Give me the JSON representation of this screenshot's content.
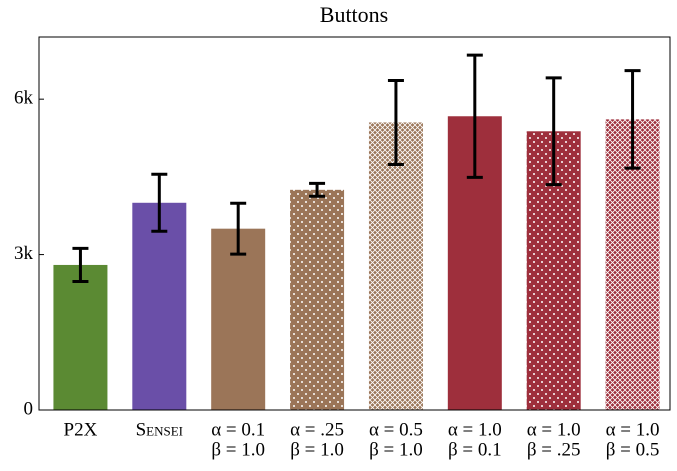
{
  "chart_data": {
    "type": "bar",
    "title": "Buttons",
    "categories": [
      [
        "P2X"
      ],
      [
        "Sensei"
      ],
      [
        "α = 0.1",
        "β = 1.0"
      ],
      [
        "α = .25",
        "β = 1.0"
      ],
      [
        "α = 0.5",
        "β = 1.0"
      ],
      [
        "α = 1.0",
        "β = 0.1"
      ],
      [
        "α = 1.0",
        "β = .25"
      ],
      [
        "α = 1.0",
        "β = 0.5"
      ]
    ],
    "values": [
      2800,
      4000,
      3500,
      4250,
      5550,
      5670,
      5380,
      5610
    ],
    "errors": [
      320,
      550,
      490,
      125,
      810,
      1180,
      1030,
      940
    ],
    "colors": [
      "#5b8a33",
      "#6a4fa8",
      "#9b7558",
      "#9b7558",
      "#9b7558",
      "#9e2f3c",
      "#9e2f3c",
      "#9e2f3c"
    ],
    "patterns": [
      "solid",
      "solid",
      "solid",
      "dots",
      "crosshatch",
      "solid",
      "dots",
      "crosshatch"
    ],
    "ylim": [
      0,
      7200
    ],
    "yticks": [
      0,
      {
        "value": 3000,
        "label": "3k"
      },
      {
        "value": 6000,
        "label": "6k"
      }
    ]
  }
}
